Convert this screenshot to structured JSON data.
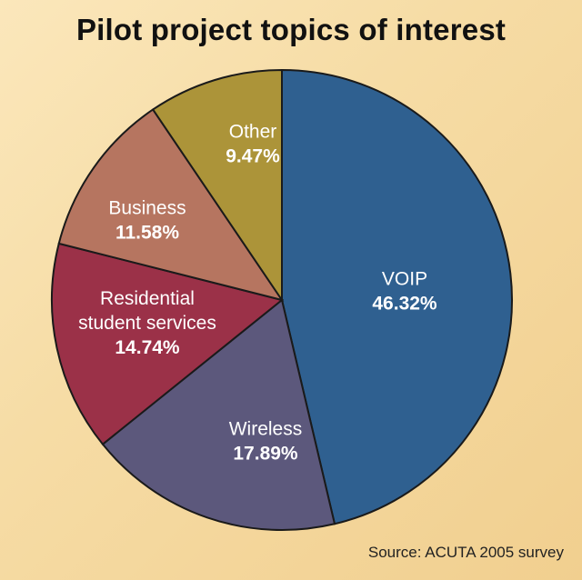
{
  "chart_data": {
    "type": "pie",
    "title": "Pilot project topics of interest",
    "source": "Source: ACUTA 2005 survey",
    "slices": [
      {
        "label_lines": [
          "VOIP"
        ],
        "value": 46.32,
        "value_text": "46.32%",
        "color": "#2f6090"
      },
      {
        "label_lines": [
          "Wireless"
        ],
        "value": 17.89,
        "value_text": "17.89%",
        "color": "#5c587c"
      },
      {
        "label_lines": [
          "Residential",
          "student services"
        ],
        "value": 14.74,
        "value_text": "14.74%",
        "color": "#9b3148"
      },
      {
        "label_lines": [
          "Business"
        ],
        "value": 11.58,
        "value_text": "11.58%",
        "color": "#b67560"
      },
      {
        "label_lines": [
          "Other"
        ],
        "value": 9.47,
        "value_text": "9.47%",
        "color": "#ac9439"
      }
    ]
  }
}
